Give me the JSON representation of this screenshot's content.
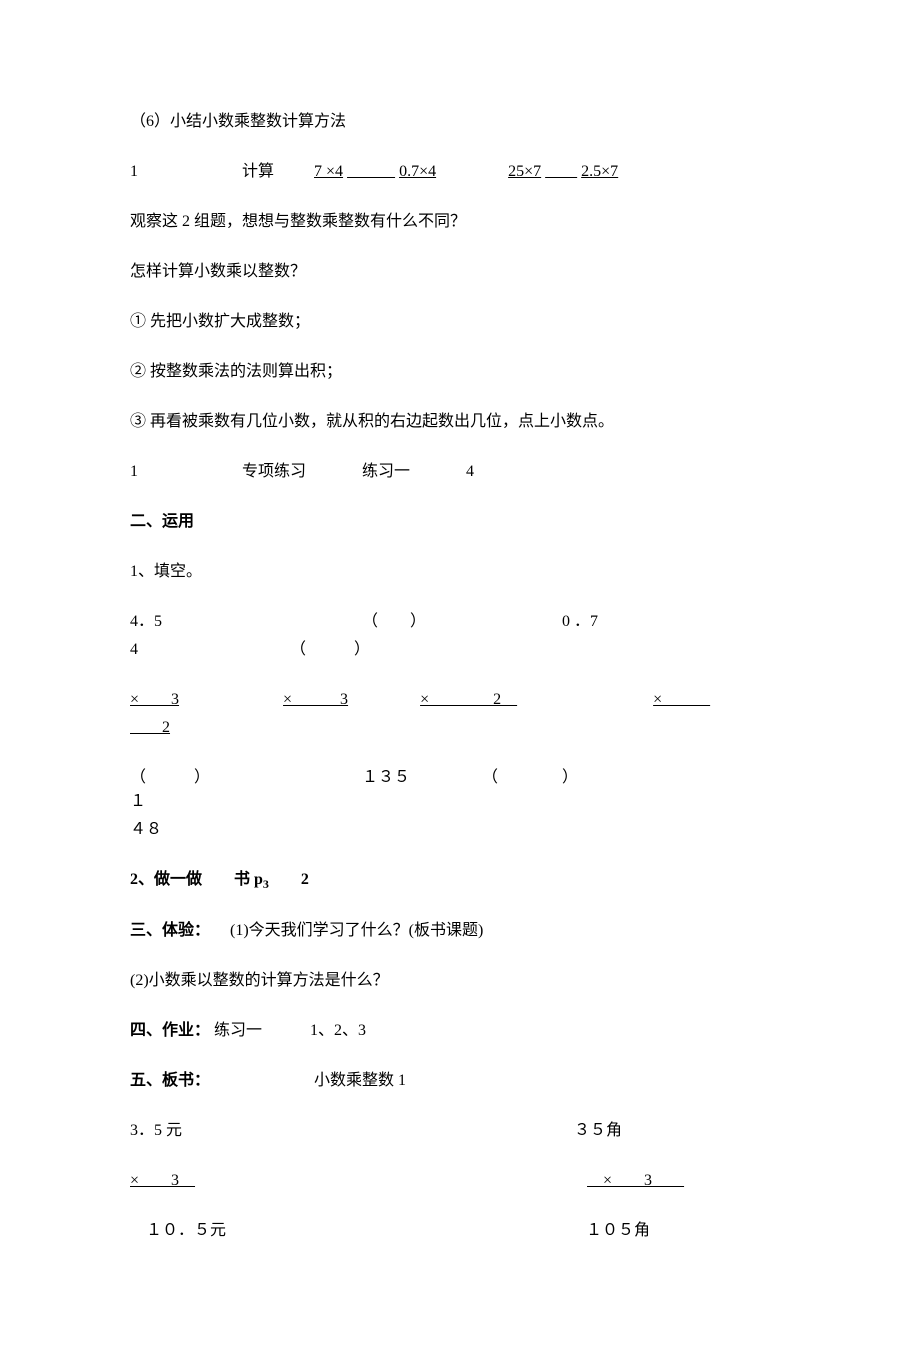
{
  "colors": {
    "text": "#000000",
    "background": "#ffffff"
  },
  "font": {
    "family": "SimSun",
    "size_pt": 12,
    "bold_weight": 700
  },
  "s6": {
    "title": "（6）小结小数乘整数计算方法",
    "calc_row": {
      "num": "1",
      "label": "计算",
      "a": "7 ×4",
      "b": "0.7×4",
      "c": "25×7",
      "d": "2.5×7"
    },
    "observe": "观察这 2 组题，想想与整数乘整数有什么不同？",
    "howto": "怎样计算小数乘以整数？",
    "step1": "① 先把小数扩大成整数；",
    "step2": "② 按整数乘法的法则算出积；",
    "step3": "③ 再看被乘数有几位小数，就从积的右边起数出几位，点上小数点。",
    "practice": {
      "num": "1",
      "label": "专项练习",
      "ref": "练习一",
      "idx": "4"
    }
  },
  "s_yy": {
    "heading": "二、运用",
    "q1": "1、填空。",
    "row_a": {
      "v1": "4．5",
      "paren": "（　　）",
      "v2": "0 ．7"
    },
    "row_b": {
      "v1": "4",
      "paren": "（　　　）"
    },
    "row_mul": {
      "m1": "×　　3",
      "m2": "×　　　3",
      "m3": "×　　　　2　",
      "m4": "×　　　",
      "m4b": "　　2"
    },
    "row_res": {
      "r1": "（　　　）",
      "r2": "１３５",
      "r3": "（　　　　）",
      "r4a": "１",
      "r4b": "４８"
    },
    "q2": {
      "label": "2、做一做　　书 p",
      "sub": "3",
      "tail": "　　2"
    }
  },
  "s_ty": {
    "heading": "三、体验：",
    "l1": "　(1)今天我们学习了什么？(板书课题)",
    "l2": "(2)小数乘以整数的计算方法是什么？"
  },
  "s_zy": {
    "heading": "四、作业：",
    "body": " 练习一　　　1、2、3"
  },
  "s_bs": {
    "heading": "五、板书：",
    "title": "小数乘整数 1",
    "left_top": "3．5 元",
    "right_top": "３５角",
    "left_mul": "×　　3　",
    "right_mul": "　×　　3　　",
    "left_res": "　１０．５元",
    "right_res": "１０５角"
  }
}
